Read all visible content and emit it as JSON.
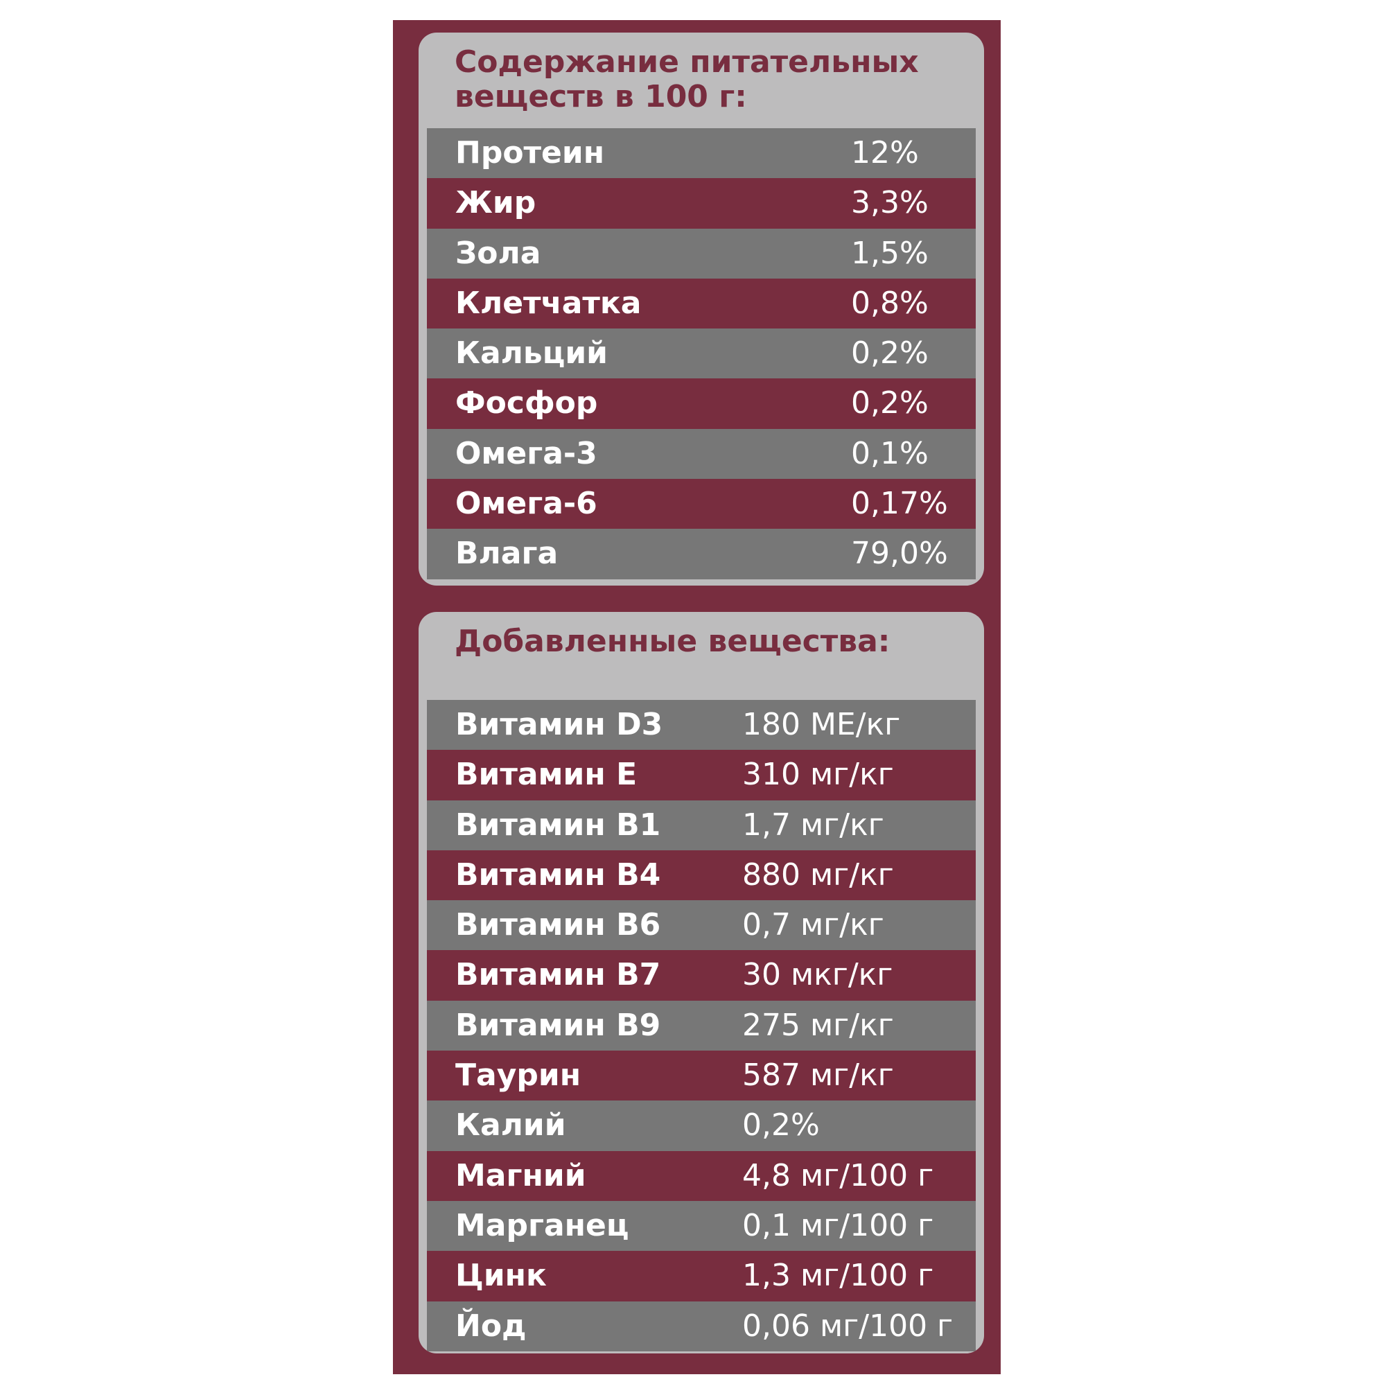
{
  "colors": {
    "accent": "#782d3f",
    "panel": "#bdbcbd",
    "row_gray": "#777777",
    "text": "#ffffff"
  },
  "nutrients": {
    "title": "Содержание питательных веществ в 100 г:",
    "rows": [
      {
        "name": "Протеин",
        "value": "12%"
      },
      {
        "name": "Жир",
        "value": "3,3%"
      },
      {
        "name": "Зола",
        "value": "1,5%"
      },
      {
        "name": "Клетчатка",
        "value": "0,8%"
      },
      {
        "name": "Кальций",
        "value": "0,2%"
      },
      {
        "name": "Фосфор",
        "value": "0,2%"
      },
      {
        "name": "Омега-3",
        "value": "0,1%"
      },
      {
        "name": "Омега-6",
        "value": "0,17%"
      },
      {
        "name": "Влага",
        "value": "79,0%"
      }
    ]
  },
  "additives": {
    "title": "Добавленные вещества:",
    "rows": [
      {
        "name": "Витамин D3",
        "value": "180 МЕ/кг"
      },
      {
        "name": "Витамин Е",
        "value": "310 мг/кг"
      },
      {
        "name": "Витамин В1",
        "value": "1,7 мг/кг"
      },
      {
        "name": "Витамин В4",
        "value": "880 мг/кг"
      },
      {
        "name": "Витамин В6",
        "value": "0,7 мг/кг"
      },
      {
        "name": "Витамин В7",
        "value": "30 мкг/кг"
      },
      {
        "name": "Витамин В9",
        "value": "275 мг/кг"
      },
      {
        "name": "Таурин",
        "value": "587 мг/кг"
      },
      {
        "name": "Калий",
        "value": "0,2%"
      },
      {
        "name": "Магний",
        "value": "4,8 мг/100 г"
      },
      {
        "name": "Марганец",
        "value": "0,1 мг/100 г"
      },
      {
        "name": "Цинк",
        "value": "1,3 мг/100 г"
      },
      {
        "name": "Йод",
        "value": "0,06 мг/100 г"
      }
    ]
  }
}
